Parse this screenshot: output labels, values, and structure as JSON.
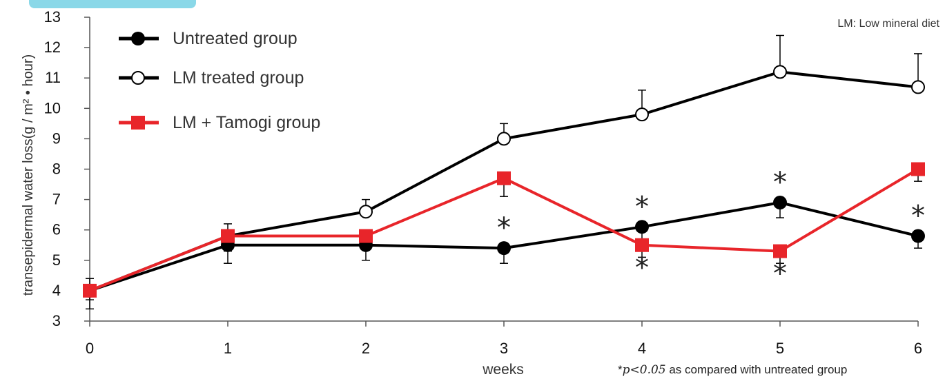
{
  "chart_data": {
    "type": "line",
    "title": "",
    "xlabel": "weeks",
    "ylabel": "transepidermal water loss(g / m² • hour)",
    "x": [
      0,
      1,
      2,
      3,
      4,
      5,
      6
    ],
    "xlim": [
      0,
      6
    ],
    "ylim": [
      3,
      13
    ],
    "yticks": [
      3,
      4,
      5,
      6,
      7,
      8,
      9,
      10,
      11,
      12,
      13
    ],
    "grid": false,
    "legend_position": "top-left",
    "series": [
      {
        "name": "Untreated group",
        "marker": "filled-circle",
        "color": "#000000",
        "values": [
          4.0,
          5.5,
          5.5,
          5.4,
          6.1,
          6.9,
          5.8
        ],
        "error": [
          0.6,
          0.6,
          0.5,
          0.5,
          0.4,
          0.5,
          0.4
        ],
        "error_dir": "down"
      },
      {
        "name": "LM treated group",
        "marker": "open-circle",
        "color": "#000000",
        "values": [
          4.0,
          5.8,
          6.6,
          9.0,
          9.8,
          11.2,
          10.7
        ],
        "error": [
          0.4,
          0.4,
          0.4,
          0.5,
          0.8,
          1.2,
          1.1
        ],
        "error_dir": "up"
      },
      {
        "name": "LM + Tamogi group",
        "marker": "square",
        "color": "#e8252a",
        "values": [
          4.0,
          5.8,
          5.8,
          7.7,
          5.5,
          5.3,
          8.0
        ],
        "error": [
          0.3,
          0.5,
          0.3,
          0.6,
          0.4,
          0.4,
          0.4
        ],
        "error_dir": "down"
      }
    ],
    "significance": [
      {
        "series": 0,
        "x": 3,
        "pos": "above"
      },
      {
        "series": 0,
        "x": 4,
        "pos": "above"
      },
      {
        "series": 0,
        "x": 5,
        "pos": "above"
      },
      {
        "series": 0,
        "x": 6,
        "pos": "above"
      },
      {
        "series": 2,
        "x": 4,
        "pos": "below"
      },
      {
        "series": 2,
        "x": 5,
        "pos": "below"
      }
    ],
    "sig_symbol": "*",
    "annotations": {
      "top_right": "LM: Low mineral diet",
      "footnote_prefix": "*",
      "footnote_p": "p",
      "footnote_threshold": "<0.05",
      "footnote_rest": " as compared with untreated group"
    }
  }
}
